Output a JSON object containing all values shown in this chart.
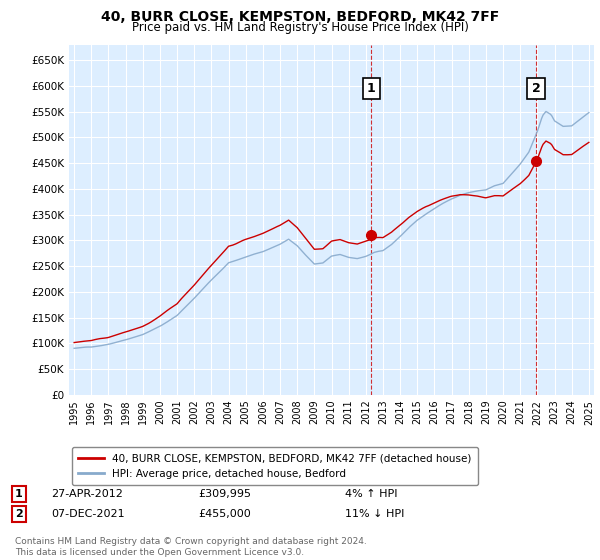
{
  "title": "40, BURR CLOSE, KEMPSTON, BEDFORD, MK42 7FF",
  "subtitle": "Price paid vs. HM Land Registry's House Price Index (HPI)",
  "legend_line1": "40, BURR CLOSE, KEMPSTON, BEDFORD, MK42 7FF (detached house)",
  "legend_line2": "HPI: Average price, detached house, Bedford",
  "ann1_num": "1",
  "ann1_date": "27-APR-2012",
  "ann1_price": "£309,995",
  "ann1_hpi": "4% ↑ HPI",
  "ann1_x": 2012.32,
  "ann2_num": "2",
  "ann2_date": "07-DEC-2021",
  "ann2_price": "£455,000",
  "ann2_hpi": "11% ↓ HPI",
  "ann2_x": 2021.93,
  "footer": "Contains HM Land Registry data © Crown copyright and database right 2024.\nThis data is licensed under the Open Government Licence v3.0.",
  "ytick_labels": [
    "£0",
    "£50K",
    "£100K",
    "£150K",
    "£200K",
    "£250K",
    "£300K",
    "£350K",
    "£400K",
    "£450K",
    "£500K",
    "£550K",
    "£600K",
    "£650K"
  ],
  "ytick_values": [
    0,
    50000,
    100000,
    150000,
    200000,
    250000,
    300000,
    350000,
    400000,
    450000,
    500000,
    550000,
    600000,
    650000
  ],
  "xlim": [
    1994.7,
    2025.3
  ],
  "ylim": [
    0,
    680000
  ],
  "color_red": "#cc0000",
  "color_blue": "#88aacc",
  "color_bg": "#ddeeff",
  "color_grid": "#ffffff",
  "ann1_y": 309995,
  "ann2_y": 455000,
  "price1": 309995,
  "price2": 455000
}
